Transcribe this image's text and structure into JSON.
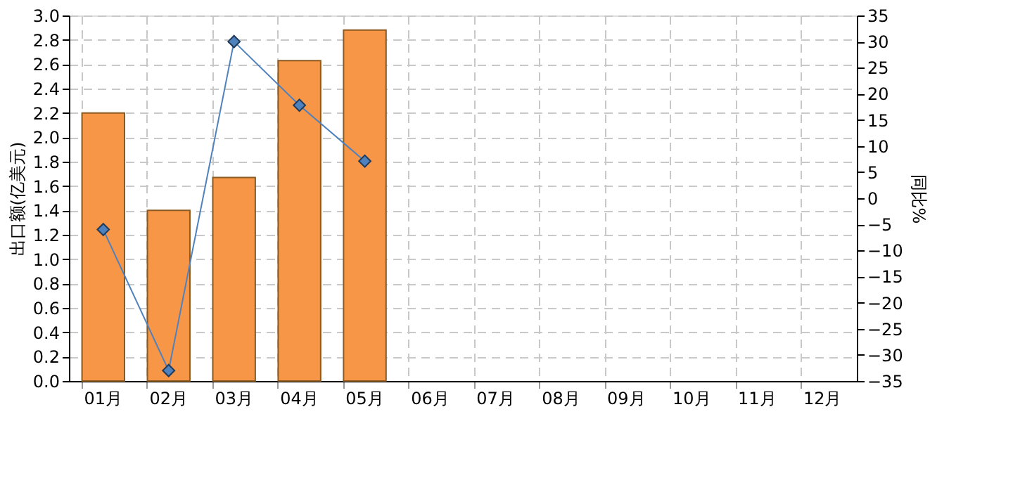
{
  "chart_data": {
    "type": "bar",
    "categories": [
      "01月",
      "02月",
      "03月",
      "04月",
      "05月",
      "06月",
      "07月",
      "08月",
      "09月",
      "10月",
      "11月",
      "12月"
    ],
    "ylabel": "出口额(亿美元)",
    "y2label": "同比%",
    "ylim": [
      0,
      3.0
    ],
    "yticks": [
      {
        "value": 0,
        "label": "0.0"
      },
      0.2,
      0.4,
      0.6,
      0.8,
      {
        "value": 1,
        "label": "1.0"
      },
      1.2,
      1.4,
      1.6,
      1.8,
      {
        "value": 2,
        "label": "2.0"
      },
      2.2,
      2.4,
      2.6,
      2.8,
      {
        "value": 3,
        "label": "3.0"
      }
    ],
    "y2lim": [
      -35,
      35
    ],
    "y2ticks": [
      -35,
      -30,
      -25,
      -20,
      -15,
      -10,
      -5,
      0,
      5,
      10,
      15,
      20,
      25,
      30,
      35
    ],
    "series": [
      {
        "color": "#f79646",
        "values": [
          2.2,
          1.4,
          1.67,
          2.63,
          2.88,
          null,
          null,
          null,
          null,
          null,
          null,
          null
        ]
      },
      {
        "type": "line",
        "axis": "y2",
        "color": "#4f81bd",
        "marker": "diamond",
        "values": [
          -6,
          -33,
          30,
          17.8,
          7.1,
          null,
          null,
          null,
          null,
          null,
          null,
          null
        ]
      }
    ],
    "grid": true
  }
}
